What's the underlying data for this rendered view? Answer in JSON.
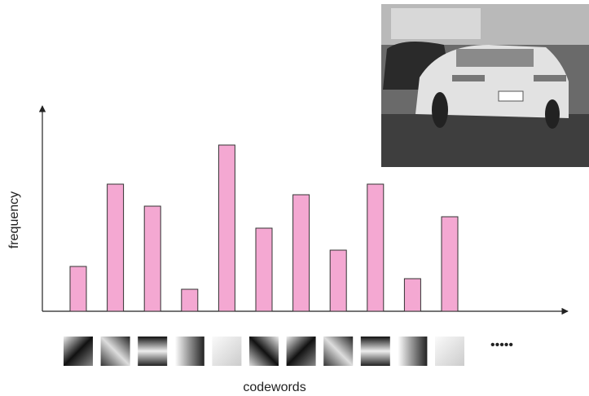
{
  "chart_data": {
    "type": "bar",
    "y_label": "frequency",
    "x_label": "codewords",
    "more_label": "•••••",
    "categories": [
      null,
      null,
      null,
      null,
      null,
      null,
      null,
      null,
      null,
      null,
      null
    ],
    "values": [
      55,
      156,
      129,
      27,
      204,
      102,
      143,
      75,
      156,
      40,
      116
    ],
    "ylim": [
      0,
      252
    ],
    "color": "#f4a8d2"
  }
}
